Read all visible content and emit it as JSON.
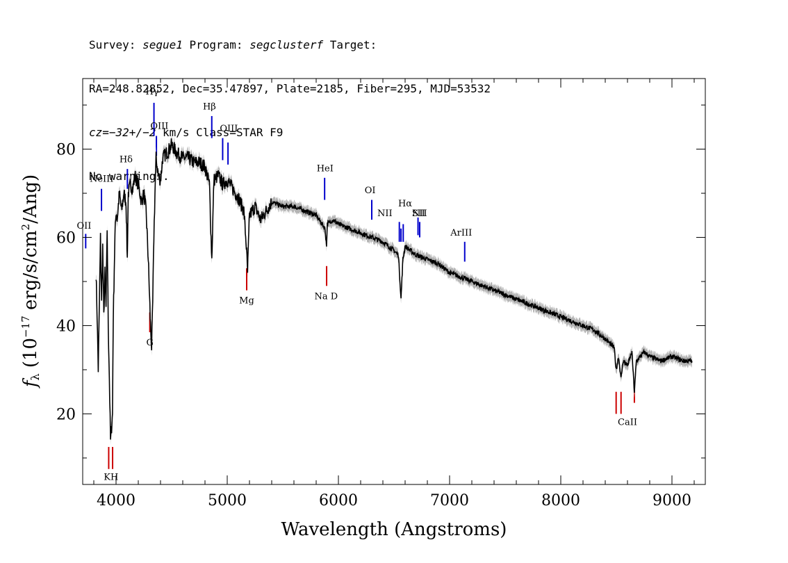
{
  "header": {
    "line1": [
      "Survey: ",
      "segue1",
      " Program: ",
      "segclusterf",
      " Target:"
    ],
    "line2": "RA=248.82852, Dec=35.47897, Plate=2185, Fiber=295, MJD=53532",
    "line3": [
      "cz=",
      "−32+/−2",
      " km/s Class=STAR F9"
    ],
    "line4": "No warnings."
  },
  "colors": {
    "spectrum": "#000000",
    "error": "#b4b4b4",
    "emission": "#0000cc",
    "absorption": "#cc0000"
  },
  "chart_data": {
    "type": "line",
    "title": "",
    "xlabel": "Wavelength (Angstroms)",
    "ylabel": "fλ (10⁻¹⁷ erg/s/cm²/Ang)",
    "xlim": [
      3700,
      9300
    ],
    "ylim": [
      4,
      96
    ],
    "x_ticks": [
      4000,
      5000,
      6000,
      7000,
      8000,
      9000
    ],
    "y_ticks": [
      20,
      40,
      60,
      80
    ],
    "grid": false,
    "series": [
      {
        "x": [
          3820,
          3830,
          3840,
          3850,
          3860,
          3870,
          3880,
          3890,
          3900,
          3910,
          3920,
          3930,
          3940,
          3950,
          3960,
          3968,
          3975,
          3990,
          4000,
          4010,
          4030,
          4050,
          4070,
          4090,
          4101,
          4110,
          4130,
          4150,
          4170,
          4200,
          4230,
          4250,
          4270,
          4290,
          4310,
          4320,
          4330,
          4340,
          4350,
          4360,
          4380,
          4400,
          4420,
          4450,
          4480,
          4500,
          4550,
          4600,
          4650,
          4700,
          4750,
          4800,
          4840,
          4861,
          4880,
          4920,
          4960,
          5000,
          5050,
          5100,
          5150,
          5172,
          5183,
          5200,
          5250,
          5300,
          5400,
          5500,
          5600,
          5700,
          5800,
          5880,
          5893,
          5900,
          5950,
          6000,
          6100,
          6200,
          6300,
          6400,
          6500,
          6540,
          6563,
          6580,
          6600,
          6700,
          6800,
          6900,
          7000,
          7100,
          7200,
          7300,
          7400,
          7500,
          7600,
          7700,
          7800,
          7900,
          8000,
          8100,
          8200,
          8300,
          8400,
          8480,
          8498,
          8520,
          8542,
          8560,
          8600,
          8640,
          8662,
          8680,
          8750,
          8800,
          8900,
          9000,
          9100,
          9180
        ],
        "y": [
          52,
          42,
          30,
          45,
          60,
          45,
          58,
          42,
          52,
          44,
          62,
          40,
          28,
          14,
          17,
          20,
          42,
          60,
          66,
          64,
          70,
          66,
          70,
          68,
          55,
          70,
          72,
          71,
          74,
          72,
          68,
          70,
          66,
          55,
          40,
          35,
          45,
          60,
          70,
          78,
          74,
          73,
          78,
          79,
          80,
          81,
          79,
          78,
          78,
          77,
          77,
          76,
          72,
          55,
          73,
          74,
          72,
          73,
          71,
          69,
          66,
          58,
          52,
          65,
          67,
          64,
          68,
          67,
          67,
          66,
          65,
          62,
          58,
          63,
          64,
          63,
          62,
          61,
          60,
          59,
          57,
          56,
          46,
          55,
          58,
          56,
          55,
          54,
          52,
          51,
          50,
          49,
          48,
          47,
          46,
          45,
          44,
          43,
          42,
          41,
          40,
          39,
          37,
          35,
          30,
          33,
          28,
          32,
          31,
          34,
          25,
          32,
          34,
          33,
          32,
          33,
          32,
          32
        ]
      }
    ],
    "emission_lines": [
      {
        "label": "OII",
        "x": 3727
      },
      {
        "label": "NeIII",
        "x": 3869
      },
      {
        "label": "Hδ",
        "x": 4102
      },
      {
        "label": "Hγ",
        "x": 4341
      },
      {
        "label": "OIII",
        "x": 4363
      },
      {
        "label": "Hβ",
        "x": 4861
      },
      {
        "label": "OIII",
        "x": 4959
      },
      {
        "label": "OIII",
        "x": 5007
      },
      {
        "label": "HeI",
        "x": 5876
      },
      {
        "label": "OI",
        "x": 6300
      },
      {
        "label": "NII",
        "x": 6548
      },
      {
        "label": "Hα",
        "x": 6563
      },
      {
        "label": "NII",
        "x": 6583
      },
      {
        "label": "SII",
        "x": 6716
      },
      {
        "label": "SII",
        "x": 6731
      },
      {
        "label": "ArIII",
        "x": 7136
      }
    ],
    "absorption_lines": [
      {
        "label": "K",
        "x": 3934
      },
      {
        "label": "H",
        "x": 3969
      },
      {
        "label": "G",
        "x": 4304
      },
      {
        "label": "Mg",
        "x": 5175
      },
      {
        "label": "Na D",
        "x": 5894
      },
      {
        "label": "CaII",
        "x": 8498
      },
      {
        "label": "CaII",
        "x": 8542
      },
      {
        "label": "CaII",
        "x": 8662
      }
    ],
    "line_labels": {
      "emission": [
        {
          "text": "OII"
        },
        {
          "text": "NeIII"
        },
        {
          "text": "Hδ"
        },
        {
          "text": "Hγ"
        },
        {
          "text": "OIII"
        },
        {
          "text": "Hβ"
        },
        {
          "text": "OIII"
        },
        {
          "text": "HeI"
        },
        {
          "text": "OI"
        },
        {
          "text": "NII"
        },
        {
          "text": "Hα"
        },
        {
          "text": "NII"
        },
        {
          "text": "SII"
        },
        {
          "text": "ArIII"
        }
      ],
      "absorption": [
        {
          "text": "KH"
        },
        {
          "text": "G"
        },
        {
          "text": "Mg"
        },
        {
          "text": "Na  D"
        },
        {
          "text": "CaII"
        }
      ]
    }
  }
}
